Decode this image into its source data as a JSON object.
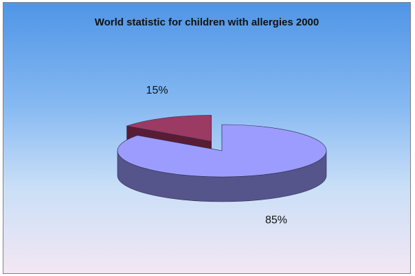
{
  "chart_data": {
    "type": "pie",
    "title": "World statistic for children with allergies 2000",
    "slices": [
      {
        "value": 85,
        "label": "85%",
        "color": "#9c9cff",
        "side_color": "#55558c",
        "exploded": false
      },
      {
        "value": 15,
        "label": "15%",
        "color": "#9b3a63",
        "side_color": "#5a1c35",
        "exploded": true
      }
    ],
    "legend": "none",
    "view": "3d-tilted"
  }
}
